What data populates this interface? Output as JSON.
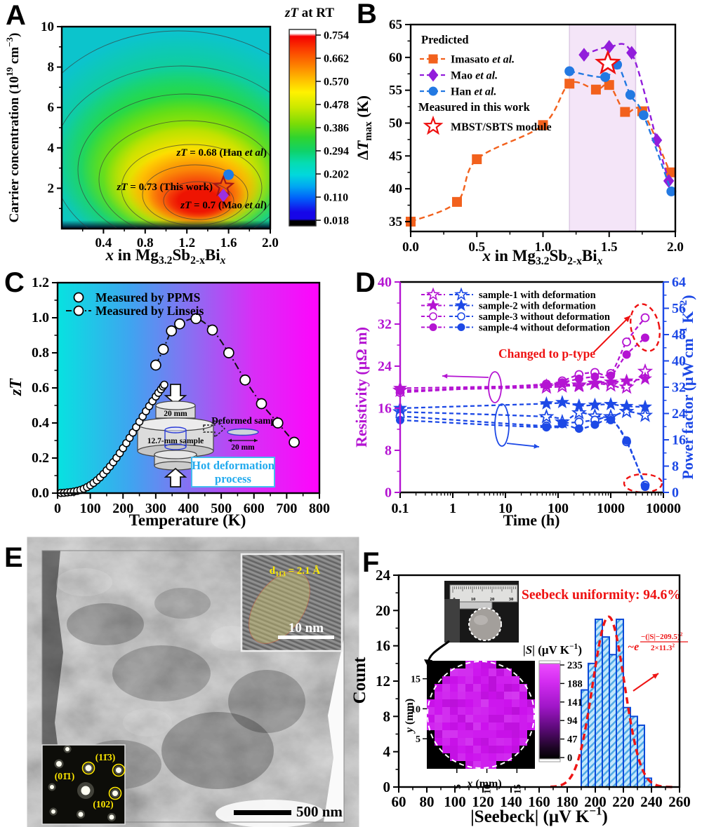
{
  "letters": {
    "a": "A",
    "b": "B",
    "c": "C",
    "d": "D",
    "e": "E",
    "f": "F"
  },
  "rich": {
    "mg_xlabel": [
      [
        "bi",
        "x"
      ],
      [
        "b",
        " in Mg"
      ],
      [
        "sub",
        "3.2"
      ],
      [
        "b",
        "Sb"
      ],
      [
        "sub",
        "2-x"
      ],
      [
        "b",
        "Bi"
      ],
      [
        "subi",
        "x"
      ]
    ],
    "a_ylabel": [
      [
        "b",
        "Carrier concentration (10"
      ],
      [
        "sup",
        "19"
      ],
      [
        "b",
        " cm"
      ],
      [
        "sup",
        "−3"
      ],
      [
        "b",
        ")"
      ]
    ],
    "a_cbar_title": [
      [
        "bi",
        "zT"
      ],
      [
        "b",
        " at RT"
      ]
    ],
    "b_ylabel": [
      [
        "b",
        "Δ"
      ],
      [
        "bi",
        "T"
      ],
      [
        "sub",
        "max"
      ],
      [
        "b",
        " (K)"
      ]
    ],
    "c_ylabel": [
      [
        "bi",
        "zT"
      ]
    ],
    "c_xlabel": [
      [
        "b",
        "Temperature (K)"
      ]
    ],
    "d_ylabel_left": [
      [
        "b",
        "Resistivity (μΩ m)"
      ]
    ],
    "d_ylabel_right": [
      [
        "b",
        "Power factor (μW cm"
      ],
      [
        "sup",
        "−1"
      ],
      [
        "b",
        " K"
      ],
      [
        "sup",
        "−2"
      ],
      [
        "b",
        ")"
      ]
    ],
    "d_xlabel": [
      [
        "b",
        "Time (h)"
      ]
    ],
    "f_ylabel": [
      [
        "b",
        "Count"
      ]
    ],
    "f_xlabel": [
      [
        "b",
        "|Seebeck| (μV K"
      ],
      [
        "sup",
        "−1"
      ],
      [
        "b",
        ")"
      ]
    ],
    "f_cbar_title": [
      [
        "bi",
        "|S|"
      ],
      [
        "b",
        " (μV K"
      ],
      [
        "sup",
        "−1"
      ],
      [
        "b",
        ")"
      ]
    ],
    "f_map_xlabel": [
      [
        "bi",
        "x"
      ],
      [
        "b",
        " (mm)"
      ]
    ],
    "f_map_ylabel": [
      [
        "bi",
        "y"
      ],
      [
        "b",
        " (mm)"
      ]
    ],
    "e_d_label": [
      [
        "b",
        "d"
      ],
      [
        "sub",
        "11̄3"
      ],
      [
        "b",
        " = 2.1 Å"
      ]
    ]
  },
  "chart_data": [
    {
      "panel": "A",
      "type": "heatmap",
      "xlabel": "x in Mg3.2Sb2-xBix",
      "ylabel": "Carrier concentration (10^19 cm^-3)",
      "xlim": [
        0,
        2.0
      ],
      "ylim": [
        0,
        10
      ],
      "x_ticks": [
        "0.4",
        "0.8",
        "1.2",
        "1.6",
        "2.0"
      ],
      "y_ticks": [
        "2",
        "4",
        "6",
        "8",
        "10"
      ],
      "colorbar": {
        "title": "zT at RT",
        "tick_labels": [
          "0.754",
          "0.662",
          "0.570",
          "0.478",
          "0.386",
          "0.294",
          "0.202",
          "0.110",
          "0.018"
        ]
      },
      "points": [
        {
          "label": "zT = 0.68 (Han et al)",
          "label_rich": [
            [
              "bi",
              "zT"
            ],
            [
              "b",
              " = 0.68 (Han "
            ],
            [
              "bi",
              "et al"
            ],
            [
              "b",
              ")"
            ]
          ],
          "marker": "circle",
          "color": "#1e7ce6",
          "x": 1.6,
          "y": 2.67
        },
        {
          "label": "zT = 0.73 (This work)",
          "label_rich": [
            [
              "bi",
              "zT"
            ],
            [
              "b",
              " = 0.73 (This work)"
            ]
          ],
          "marker": "star",
          "color": "#a31515",
          "x": 1.55,
          "y": 2.08
        },
        {
          "label": "zT = 0.7 (Mao et al)",
          "label_rich": [
            [
              "bi",
              "zT"
            ],
            [
              "b",
              " = 0.7 (Mao "
            ],
            [
              "bi",
              "et al"
            ],
            [
              "b",
              ")"
            ]
          ],
          "marker": "diamond",
          "color": "#9b30e0",
          "x": 1.55,
          "y": 1.65
        }
      ],
      "description": "jet-colormap contour map of zT at room temperature, maximum zT about 0.75 near x=1.35 and carrier concentration about 1e19 cm-3"
    },
    {
      "panel": "B",
      "type": "line",
      "xlabel": "x in Mg3.2Sb2-xBix",
      "ylabel": "dT_max (K)",
      "xlim": [
        0,
        2.0
      ],
      "ylim": [
        33.5,
        65
      ],
      "x_ticks": [
        "0.0",
        "0.5",
        "1.0",
        "1.5",
        "2.0"
      ],
      "y_ticks": [
        "35",
        "40",
        "45",
        "50",
        "55",
        "60",
        "65"
      ],
      "shaded_region": {
        "x0": 1.2,
        "x1": 1.7,
        "color": "#f4e5f8"
      },
      "legend": {
        "group1_title": "Predicted",
        "group2_title": "Measured in this work"
      },
      "series": [
        {
          "name": "Imasato et al.",
          "name_rich": [
            [
              "b",
              "Imasato "
            ],
            [
              "bi",
              "et al."
            ]
          ],
          "color": "#f2611d",
          "marker": "square",
          "points": [
            [
              0,
              35
            ],
            [
              0.35,
              38
            ],
            [
              0.5,
              44.5
            ],
            [
              1.0,
              49.7
            ],
            [
              1.2,
              56.0
            ],
            [
              1.4,
              55.1
            ],
            [
              1.5,
              55.8
            ],
            [
              1.62,
              51.7
            ],
            [
              1.75,
              51.8
            ],
            [
              1.96,
              42.5
            ]
          ]
        },
        {
          "name": "Mao et al.",
          "name_rich": [
            [
              "b",
              "Mao "
            ],
            [
              "bi",
              "et al."
            ]
          ],
          "color": "#921ddb",
          "marker": "diamond",
          "points": [
            [
              1.31,
              60.4
            ],
            [
              1.5,
              61.6
            ],
            [
              1.67,
              60.7
            ],
            [
              1.86,
              47.4
            ],
            [
              1.95,
              41.2
            ]
          ]
        },
        {
          "name": "Han et al.",
          "name_rich": [
            [
              "b",
              "Han "
            ],
            [
              "bi",
              "et al."
            ]
          ],
          "color": "#2379e2",
          "marker": "circle",
          "points": [
            [
              1.2,
              57.9
            ],
            [
              1.47,
              57.0
            ],
            [
              1.56,
              58.9
            ],
            [
              1.66,
              54.3
            ],
            [
              1.76,
              51.2
            ],
            [
              1.97,
              39.6
            ]
          ]
        }
      ],
      "measured_point": {
        "name": "MBST/SBTS module",
        "color": "#ee1111",
        "marker": "star",
        "x": 1.49,
        "y": 59.1
      }
    },
    {
      "panel": "C",
      "type": "line",
      "xlabel": "Temperature (K)",
      "ylabel": "zT",
      "xlim": [
        0,
        800
      ],
      "ylim": [
        0,
        1.2
      ],
      "x_ticks": [
        "0",
        "100",
        "200",
        "300",
        "400",
        "500",
        "600",
        "700",
        "800"
      ],
      "y_ticks": [
        "0.0",
        "0.2",
        "0.4",
        "0.6",
        "0.8",
        "1.0",
        "1.2"
      ],
      "series": [
        {
          "name": "Measured by PPMS",
          "marker": "circle",
          "line": "none",
          "points": [
            [
              10,
              0.001
            ],
            [
              20,
              0.002
            ],
            [
              30,
              0.004
            ],
            [
              40,
              0.006
            ],
            [
              50,
              0.009
            ],
            [
              60,
              0.013
            ],
            [
              70,
              0.018
            ],
            [
              80,
              0.025
            ],
            [
              90,
              0.034
            ],
            [
              100,
              0.045
            ],
            [
              110,
              0.058
            ],
            [
              120,
              0.073
            ],
            [
              130,
              0.09
            ],
            [
              140,
              0.109
            ],
            [
              150,
              0.13
            ],
            [
              160,
              0.152
            ],
            [
              170,
              0.176
            ],
            [
              180,
              0.201
            ],
            [
              190,
              0.228
            ],
            [
              200,
              0.256
            ],
            [
              210,
              0.285
            ],
            [
              220,
              0.315
            ],
            [
              230,
              0.345
            ],
            [
              240,
              0.376
            ],
            [
              250,
              0.407
            ],
            [
              260,
              0.437
            ],
            [
              270,
              0.467
            ],
            [
              280,
              0.496
            ],
            [
              290,
              0.524
            ],
            [
              300,
              0.551
            ],
            [
              308,
              0.572
            ],
            [
              316,
              0.592
            ],
            [
              322,
              0.608
            ],
            [
              326,
              0.618
            ]
          ]
        },
        {
          "name": "Measured by Linseis",
          "marker": "circle",
          "line": "dashdot",
          "points": [
            [
              300,
              0.73
            ],
            [
              323,
              0.82
            ],
            [
              348,
              0.925
            ],
            [
              373,
              0.965
            ],
            [
              423,
              0.995
            ],
            [
              473,
              0.93
            ],
            [
              523,
              0.8
            ],
            [
              573,
              0.645
            ],
            [
              623,
              0.51
            ],
            [
              673,
              0.4
            ],
            [
              723,
              0.29
            ]
          ]
        }
      ],
      "inset": {
        "top_die_label": "20 mm",
        "sample_label": "12.7-mm sample",
        "deformed_label": "Deformed sample",
        "deformed_width_label": "20 mm",
        "process_label_line1": "Hot deformation",
        "process_label_line2": "process"
      }
    },
    {
      "panel": "D",
      "type": "line",
      "xlabel": "Time (h)",
      "ylabel_left": "Resistivity (uOhm m)",
      "ylabel_right": "Power factor (uW cm-1 K-2)",
      "x_scale": "log",
      "xlim": [
        0.1,
        10000
      ],
      "ylim_left": [
        0,
        40
      ],
      "ylim_right": [
        0,
        64
      ],
      "x_ticks": [
        "0.1",
        "1",
        "10",
        "100",
        "1000",
        "10000"
      ],
      "y_left_ticks": [
        "0",
        "8",
        "16",
        "24",
        "32",
        "40"
      ],
      "y_right_ticks": [
        "0",
        "8",
        "16",
        "24",
        "32",
        "40",
        "48",
        "56",
        "64"
      ],
      "legend": [
        "sample-1 with deformation",
        "sample-2 with deformation",
        "sample-3 without deformation",
        "sample-4 without deformation"
      ],
      "annotation": "Changed to p-type",
      "colors": {
        "resistivity": "#b414d2",
        "power_factor": "#1d49e6"
      },
      "x_values": [
        0.1,
        60,
        120,
        250,
        500,
        1000,
        2000,
        4500
      ],
      "resistivity_series": [
        {
          "name": "sample-1 with deformation",
          "marker": "star",
          "filled": false,
          "values": [
            19.4,
            20.0,
            20.2,
            20.4,
            20.7,
            20.4,
            20.0,
            23.0
          ]
        },
        {
          "name": "sample-2 with deformation",
          "marker": "star",
          "filled": true,
          "values": [
            19.8,
            20.3,
            20.6,
            20.2,
            20.8,
            21.0,
            21.2,
            21.6
          ]
        },
        {
          "name": "sample-3 without deformation",
          "marker": "circle",
          "filled": false,
          "values": [
            19.0,
            20.6,
            21.2,
            22.4,
            22.8,
            22.6,
            28.6,
            33.2
          ]
        },
        {
          "name": "sample-4 without deformation",
          "marker": "circle",
          "filled": true,
          "values": [
            19.3,
            20.4,
            20.9,
            21.6,
            22.0,
            22.2,
            26.2,
            29.4
          ]
        }
      ],
      "power_factor_series": [
        {
          "name": "sample-1 with deformation",
          "marker": "star",
          "filled": false,
          "values": [
            24.5,
            23.0,
            21.4,
            24.2,
            23.2,
            23.0,
            24.6,
            23.4
          ]
        },
        {
          "name": "sample-2 with deformation",
          "marker": "star",
          "filled": true,
          "values": [
            25.6,
            27.0,
            27.4,
            26.4,
            26.6,
            26.8,
            26.2,
            26.0
          ]
        },
        {
          "name": "sample-3 without deformation",
          "marker": "circle",
          "filled": false,
          "values": [
            23.2,
            20.2,
            21.0,
            21.4,
            22.0,
            22.4,
            15.4,
            2.2
          ]
        },
        {
          "name": "sample-4 without deformation",
          "marker": "circle",
          "filled": true,
          "values": [
            22.0,
            19.8,
            20.8,
            19.4,
            20.6,
            22.0,
            15.8,
            1.7
          ]
        }
      ]
    },
    {
      "panel": "F",
      "type": "bar",
      "xlabel": "|Seebeck| (uV K-1)",
      "ylabel": "Count",
      "xlim": [
        60,
        260
      ],
      "ylim": [
        0,
        24
      ],
      "x_ticks": [
        "60",
        "80",
        "100",
        "120",
        "140",
        "160",
        "180",
        "200",
        "220",
        "240",
        "260"
      ],
      "y_ticks": [
        "0",
        "4",
        "8",
        "12",
        "16",
        "20",
        "24"
      ],
      "bin_start": 190,
      "bin_width": 5,
      "counts": [
        11,
        14,
        19,
        17,
        15,
        19,
        9,
        8,
        7,
        1
      ],
      "gauss": {
        "mean": 209.5,
        "sigma": 11.3,
        "amplitude": 19.3
      },
      "uniformity_text": "Seebeck uniformity: 94.6%",
      "formula": {
        "prefix": "~e",
        "numerator": "−(|S|−209.5)",
        "numerator_exp": "2",
        "denominator": "2×11.3",
        "denominator_exp": "2"
      },
      "map_inset": {
        "xlabel": "x (mm)",
        "ylabel": "y (mm)",
        "axis_ticks": [
          "5",
          "10",
          "15"
        ],
        "colorbar_title": "|S| (uV K-1)",
        "colorbar_ticks": [
          "235",
          "188",
          "141",
          "94",
          "47",
          "0"
        ]
      },
      "photo_inset": {
        "ruler_numbers": [
          "0",
          "10",
          "20",
          "30"
        ]
      }
    }
  ],
  "panel_e": {
    "hrtem_d_label": "d_113bar = 2.1 Å",
    "hrtem_scale_label": "10 nm",
    "diffraction_spots": [
      "(01̄1)",
      "(11̄3)",
      "(102)"
    ],
    "scalebar_label": "500 nm"
  }
}
